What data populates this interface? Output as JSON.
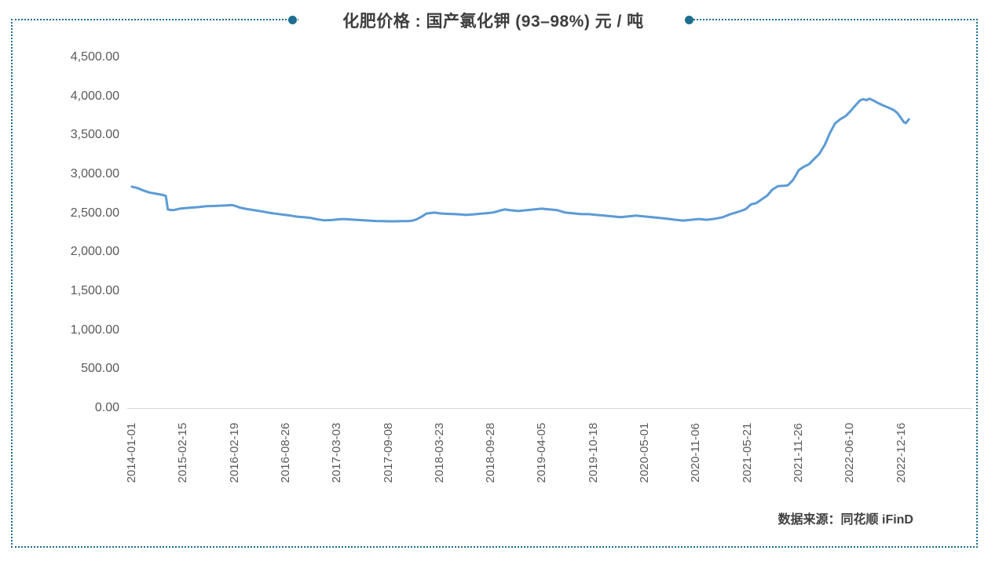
{
  "panel": {
    "title": "化肥价格 : 国产氯化钾 (93–98%)  元 / 吨",
    "source": "数据来源：同花顺 iFinD",
    "border_color": "#1d6e8f"
  },
  "chart_data": {
    "type": "line",
    "title": "化肥价格 : 国产氯化钾 (93–98%) 元 / 吨",
    "unit": "元/吨",
    "legend": "none",
    "grid": false,
    "line_color": "#5B9BD5",
    "ylim": [
      0,
      4500
    ],
    "y_ticks": [
      "4,500.00",
      "4,000.00",
      "3,500.00",
      "3,000.00",
      "2,500.00",
      "2,000.00",
      "1,500.00",
      "1,000.00",
      "500.00",
      "0.00"
    ],
    "x_labels": [
      "2014-01-01",
      "2015-02-15",
      "2016-02-19",
      "2016-08-26",
      "2017-03-03",
      "2017-09-08",
      "2018-03-23",
      "2018-09-28",
      "2019-04-05",
      "2019-10-18",
      "2020-05-01",
      "2020-11-06",
      "2021-05-21",
      "2021-11-26",
      "2022-06-10",
      "2022-12-16"
    ],
    "series": [
      {
        "name": "国产氯化钾(93–98%)",
        "points": [
          [
            0,
            2840
          ],
          [
            0.11,
            2822
          ],
          [
            0.23,
            2790
          ],
          [
            0.34,
            2765
          ],
          [
            0.45,
            2752
          ],
          [
            0.57,
            2738
          ],
          [
            0.66,
            2722
          ],
          [
            0.7,
            2548
          ],
          [
            0.77,
            2540
          ],
          [
            0.83,
            2542
          ],
          [
            0.95,
            2560
          ],
          [
            1.1,
            2568
          ],
          [
            1.3,
            2578
          ],
          [
            1.45,
            2590
          ],
          [
            1.6,
            2592
          ],
          [
            1.72,
            2596
          ],
          [
            1.85,
            2600
          ],
          [
            1.95,
            2605
          ],
          [
            2.05,
            2585
          ],
          [
            2.1,
            2572
          ],
          [
            2.25,
            2552
          ],
          [
            2.45,
            2532
          ],
          [
            2.6,
            2515
          ],
          [
            2.71,
            2502
          ],
          [
            2.85,
            2490
          ],
          [
            2.97,
            2480
          ],
          [
            3.1,
            2468
          ],
          [
            3.22,
            2455
          ],
          [
            3.35,
            2448
          ],
          [
            3.48,
            2440
          ],
          [
            3.55,
            2430
          ],
          [
            3.63,
            2420
          ],
          [
            3.75,
            2408
          ],
          [
            3.9,
            2412
          ],
          [
            4.0,
            2420
          ],
          [
            4.12,
            2425
          ],
          [
            4.25,
            2420
          ],
          [
            4.36,
            2415
          ],
          [
            4.5,
            2410
          ],
          [
            4.62,
            2405
          ],
          [
            4.75,
            2400
          ],
          [
            4.88,
            2398
          ],
          [
            5.0,
            2396
          ],
          [
            5.13,
            2396
          ],
          [
            5.25,
            2398
          ],
          [
            5.39,
            2398
          ],
          [
            5.47,
            2405
          ],
          [
            5.54,
            2418
          ],
          [
            5.65,
            2455
          ],
          [
            5.74,
            2495
          ],
          [
            5.82,
            2502
          ],
          [
            5.9,
            2508
          ],
          [
            6.0,
            2498
          ],
          [
            6.15,
            2492
          ],
          [
            6.31,
            2488
          ],
          [
            6.45,
            2482
          ],
          [
            6.51,
            2478
          ],
          [
            6.65,
            2485
          ],
          [
            6.81,
            2495
          ],
          [
            6.95,
            2502
          ],
          [
            7.03,
            2508
          ],
          [
            7.12,
            2522
          ],
          [
            7.18,
            2535
          ],
          [
            7.27,
            2548
          ],
          [
            7.38,
            2538
          ],
          [
            7.53,
            2528
          ],
          [
            7.69,
            2538
          ],
          [
            7.84,
            2548
          ],
          [
            7.99,
            2558
          ],
          [
            8.08,
            2552
          ],
          [
            8.15,
            2548
          ],
          [
            8.3,
            2538
          ],
          [
            8.45,
            2508
          ],
          [
            8.61,
            2498
          ],
          [
            8.76,
            2488
          ],
          [
            8.91,
            2488
          ],
          [
            9.06,
            2478
          ],
          [
            9.22,
            2468
          ],
          [
            9.37,
            2458
          ],
          [
            9.53,
            2448
          ],
          [
            9.68,
            2458
          ],
          [
            9.83,
            2468
          ],
          [
            9.98,
            2458
          ],
          [
            10.14,
            2448
          ],
          [
            10.29,
            2438
          ],
          [
            10.44,
            2428
          ],
          [
            10.6,
            2415
          ],
          [
            10.75,
            2405
          ],
          [
            10.9,
            2415
          ],
          [
            11.06,
            2425
          ],
          [
            11.21,
            2415
          ],
          [
            11.36,
            2428
          ],
          [
            11.52,
            2448
          ],
          [
            11.67,
            2488
          ],
          [
            11.82,
            2518
          ],
          [
            11.93,
            2542
          ],
          [
            11.98,
            2558
          ],
          [
            12.04,
            2595
          ],
          [
            12.08,
            2615
          ],
          [
            12.17,
            2628
          ],
          [
            12.28,
            2678
          ],
          [
            12.39,
            2728
          ],
          [
            12.48,
            2798
          ],
          [
            12.59,
            2845
          ],
          [
            12.66,
            2850
          ],
          [
            12.72,
            2852
          ],
          [
            12.79,
            2858
          ],
          [
            12.89,
            2925
          ],
          [
            12.95,
            2990
          ],
          [
            13.0,
            3050
          ],
          [
            13.09,
            3092
          ],
          [
            13.2,
            3128
          ],
          [
            13.25,
            3160
          ],
          [
            13.31,
            3200
          ],
          [
            13.4,
            3258
          ],
          [
            13.51,
            3378
          ],
          [
            13.61,
            3528
          ],
          [
            13.71,
            3652
          ],
          [
            13.81,
            3705
          ],
          [
            13.92,
            3748
          ],
          [
            14.01,
            3808
          ],
          [
            14.12,
            3892
          ],
          [
            14.2,
            3948
          ],
          [
            14.26,
            3962
          ],
          [
            14.32,
            3950
          ],
          [
            14.38,
            3968
          ],
          [
            14.46,
            3945
          ],
          [
            14.55,
            3912
          ],
          [
            14.64,
            3885
          ],
          [
            14.75,
            3855
          ],
          [
            14.85,
            3825
          ],
          [
            14.92,
            3788
          ],
          [
            14.99,
            3728
          ],
          [
            15.05,
            3668
          ],
          [
            15.09,
            3655
          ],
          [
            15.15,
            3705
          ]
        ]
      }
    ]
  }
}
